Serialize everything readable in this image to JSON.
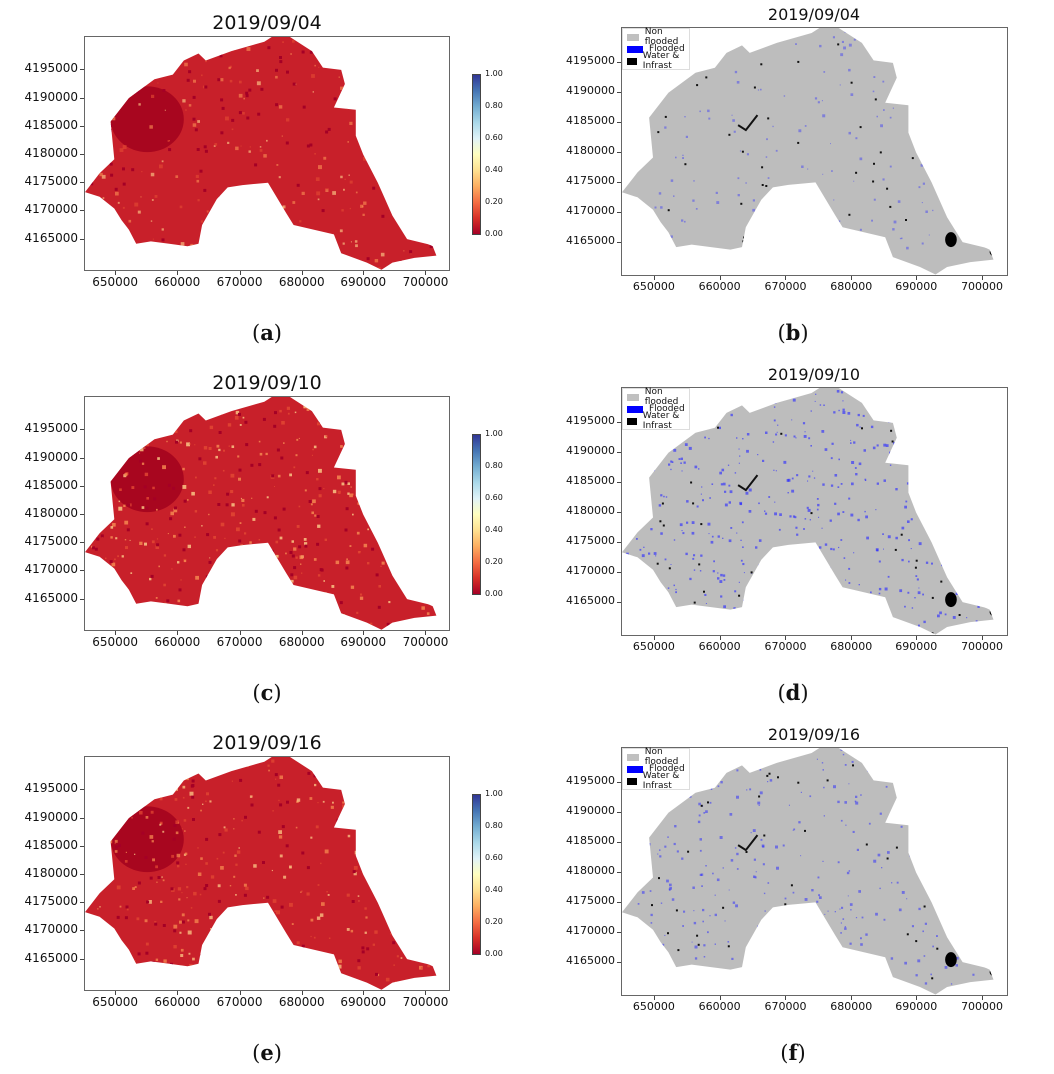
{
  "figure": {
    "panels": [
      {
        "id": "a",
        "caption_letter": "a",
        "title": "2019/09/04",
        "type": "probability",
        "intensity": 0.25
      },
      {
        "id": "b",
        "caption_letter": "b",
        "title": "2019/09/04",
        "type": "classification",
        "flood_density": 0.12
      },
      {
        "id": "c",
        "caption_letter": "c",
        "title": "2019/09/10",
        "type": "probability",
        "intensity": 0.6
      },
      {
        "id": "d",
        "caption_letter": "d",
        "title": "2019/09/10",
        "type": "classification",
        "flood_density": 0.55
      },
      {
        "id": "e",
        "caption_letter": "e",
        "title": "2019/09/16",
        "type": "probability",
        "intensity": 0.45
      },
      {
        "id": "f",
        "caption_letter": "f",
        "title": "2019/09/16",
        "type": "classification",
        "flood_density": 0.35
      }
    ],
    "x_ticks": [
      "650000",
      "660000",
      "670000",
      "680000",
      "690000",
      "700000"
    ],
    "y_ticks": [
      "4195000",
      "4190000",
      "4185000",
      "4180000",
      "4175000",
      "4170000",
      "4165000"
    ],
    "colorbar_ticks": [
      "1.00",
      "0.80",
      "0.60",
      "0.40",
      "0.20",
      "0.00"
    ],
    "legend": [
      {
        "label": "Non flooded",
        "color": "#c0c0c0"
      },
      {
        "label": "Flooded",
        "color": "#0000ff"
      },
      {
        "label": "Water & Infrast",
        "color": "#000000"
      }
    ],
    "caption_open": "(",
    "caption_close": ")"
  },
  "chart_data": [
    {
      "type": "heatmap",
      "title": "2019/09/04",
      "xlabel": "",
      "ylabel": "",
      "xlim": [
        645000,
        704000
      ],
      "ylim": [
        4162000,
        4200000
      ],
      "x_ticks": [
        650000,
        660000,
        670000,
        680000,
        690000,
        700000
      ],
      "y_ticks": [
        4165000,
        4170000,
        4175000,
        4180000,
        4185000,
        4190000,
        4195000
      ],
      "colorbar": {
        "cmap": "RdYlBu",
        "range": [
          0.0,
          1.0
        ],
        "ticks": [
          0.0,
          0.2,
          0.4,
          0.6,
          0.8,
          1.0
        ]
      },
      "description": "Flood probability map, mostly low values (0.0-0.2)"
    },
    {
      "type": "heatmap",
      "title": "2019/09/04",
      "xlim": [
        645000,
        704000
      ],
      "ylim": [
        4162000,
        4200000
      ],
      "legend": [
        "Non flooded",
        "Flooded",
        "Water & Infrast"
      ],
      "legend_position": "upper left",
      "description": "Classification map, sparse flooded pixels"
    },
    {
      "type": "heatmap",
      "title": "2019/09/10",
      "xlim": [
        645000,
        704000
      ],
      "ylim": [
        4162000,
        4200000
      ],
      "colorbar": {
        "cmap": "RdYlBu",
        "range": [
          0.0,
          1.0
        ],
        "ticks": [
          0.0,
          0.2,
          0.4,
          0.6,
          0.8,
          1.0
        ]
      },
      "description": "Flood probability map, widespread elevated values (0.2-0.5)"
    },
    {
      "type": "heatmap",
      "title": "2019/09/10",
      "xlim": [
        645000,
        704000
      ],
      "ylim": [
        4162000,
        4200000
      ],
      "legend": [
        "Non flooded",
        "Flooded",
        "Water & Infrast"
      ],
      "legend_position": "upper left",
      "description": "Classification map, widespread flooded pixels"
    },
    {
      "type": "heatmap",
      "title": "2019/09/16",
      "xlim": [
        645000,
        704000
      ],
      "ylim": [
        4162000,
        4200000
      ],
      "colorbar": {
        "cmap": "RdYlBu",
        "range": [
          0.0,
          1.0
        ],
        "ticks": [
          0.0,
          0.2,
          0.4,
          0.6,
          0.8,
          1.0
        ]
      },
      "description": "Flood probability map, elevated values in center and southeast"
    },
    {
      "type": "heatmap",
      "title": "2019/09/16",
      "xlim": [
        645000,
        704000
      ],
      "ylim": [
        4162000,
        4200000
      ],
      "legend": [
        "Non flooded",
        "Flooded",
        "Water & Infrast"
      ],
      "legend_position": "upper left",
      "description": "Classification map, flooded pixels in center and southeast"
    }
  ]
}
